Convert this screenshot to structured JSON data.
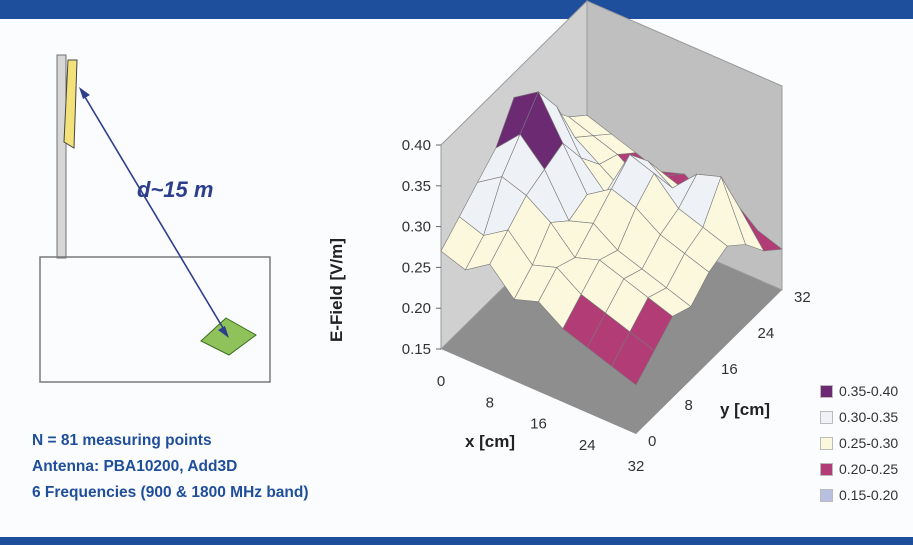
{
  "scene": {
    "distance_label": "d~15 m"
  },
  "notes": {
    "line1": "N = 81 measuring points",
    "line2": "Antenna: PBA10200, Add3D",
    "line3": "6 Frequencies (900 & 1800 MHz band)"
  },
  "chart_data": {
    "type": "surface",
    "zlabel": "E-Field [V/m]",
    "xlabel": "x [cm]",
    "ylabel": "y [cm]",
    "z_ticks": [
      "0.40",
      "0.35",
      "0.30",
      "0.25",
      "0.20",
      "0.15"
    ],
    "x_ticks": [
      "0",
      "8",
      "16",
      "24",
      "32"
    ],
    "y_ticks": [
      "0",
      "8",
      "16",
      "24",
      "32"
    ],
    "zlim": [
      0.15,
      0.4
    ],
    "x": [
      0,
      4,
      8,
      12,
      16,
      20,
      24,
      28,
      32
    ],
    "y": [
      0,
      4,
      8,
      12,
      16,
      20,
      24,
      28,
      32
    ],
    "z_grid": [
      [
        0.27,
        0.29,
        0.31,
        0.33,
        0.37,
        0.34,
        0.31,
        0.28,
        0.26
      ],
      [
        0.26,
        0.28,
        0.33,
        0.36,
        0.39,
        0.35,
        0.29,
        0.27,
        0.25
      ],
      [
        0.28,
        0.3,
        0.32,
        0.33,
        0.34,
        0.3,
        0.27,
        0.26,
        0.24
      ],
      [
        0.25,
        0.27,
        0.3,
        0.28,
        0.29,
        0.27,
        0.25,
        0.24,
        0.23
      ],
      [
        0.26,
        0.28,
        0.27,
        0.29,
        0.31,
        0.33,
        0.3,
        0.26,
        0.24
      ],
      [
        0.24,
        0.26,
        0.28,
        0.27,
        0.3,
        0.32,
        0.28,
        0.25,
        0.22
      ],
      [
        0.23,
        0.25,
        0.27,
        0.26,
        0.28,
        0.29,
        0.31,
        0.27,
        0.22
      ],
      [
        0.22,
        0.24,
        0.26,
        0.25,
        0.27,
        0.28,
        0.32,
        0.26,
        0.21
      ],
      [
        0.21,
        0.23,
        0.25,
        0.24,
        0.26,
        0.27,
        0.25,
        0.22,
        0.2
      ]
    ],
    "legend": [
      {
        "label": "0.35-0.40",
        "color": "#6b2a72"
      },
      {
        "label": "0.30-0.35",
        "color": "#eef1f5"
      },
      {
        "label": "0.25-0.30",
        "color": "#fbf8de"
      },
      {
        "label": "0.20-0.25",
        "color": "#b23c76"
      },
      {
        "label": "0.15-0.20",
        "color": "#b9bfe0"
      }
    ],
    "legend_position": "right"
  }
}
